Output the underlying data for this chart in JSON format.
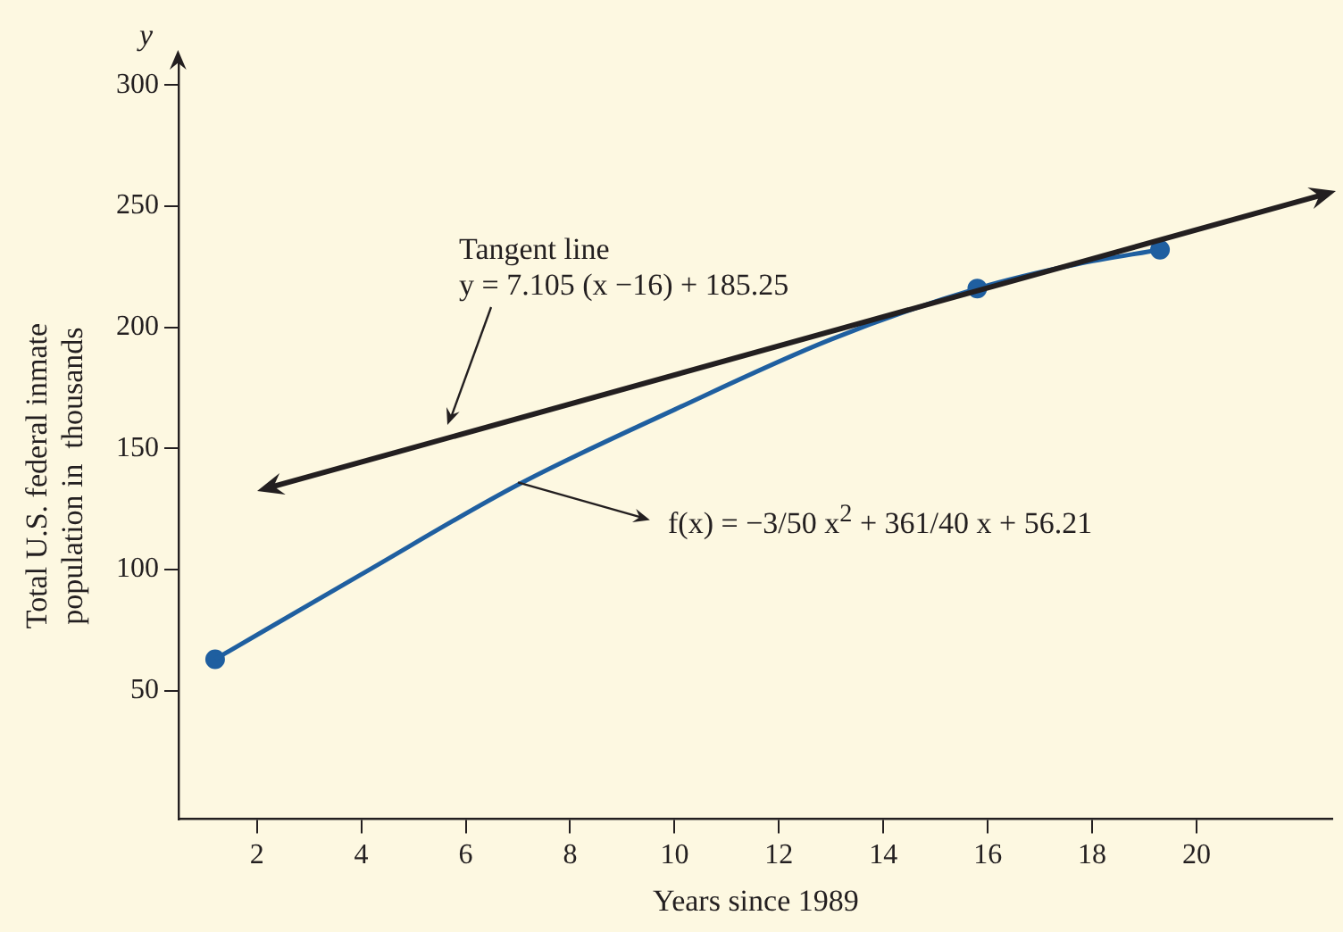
{
  "chart_data": {
    "type": "line",
    "xlabel": "Years since 1989",
    "ylabel": "Total U.S. federal inmate\npopulation in  thousands",
    "xlim": [
      0.5,
      22.6
    ],
    "ylim": [
      -3,
      310
    ],
    "xticks": [
      2,
      4,
      6,
      8,
      10,
      12,
      14,
      16,
      18,
      20
    ],
    "yticks": [
      50,
      100,
      150,
      200,
      250,
      300
    ],
    "grid": false,
    "legend": false,
    "series": [
      {
        "color": "#1f5fa0",
        "marker": "none",
        "x": [
          1.2,
          4,
          7,
          10,
          13,
          15.8,
          17.7,
          19.3
        ],
        "values": [
          63,
          98,
          135,
          166,
          195,
          216,
          226,
          232
        ]
      },
      {
        "type": "scatter",
        "color": "#1f5fa0",
        "marker": "circle",
        "x": [
          1.2,
          15.8,
          19.3
        ],
        "values": [
          63,
          216,
          232
        ]
      }
    ],
    "annotations": [
      "y",
      "Tangent line\ny = 7.105 (x −16) + 185.25",
      {
        "text": "f(x) = −3/50 x$^{2}$ + 361/40 x + 56.21",
        "x": 7,
        "y": 136
      }
    ]
  }
}
